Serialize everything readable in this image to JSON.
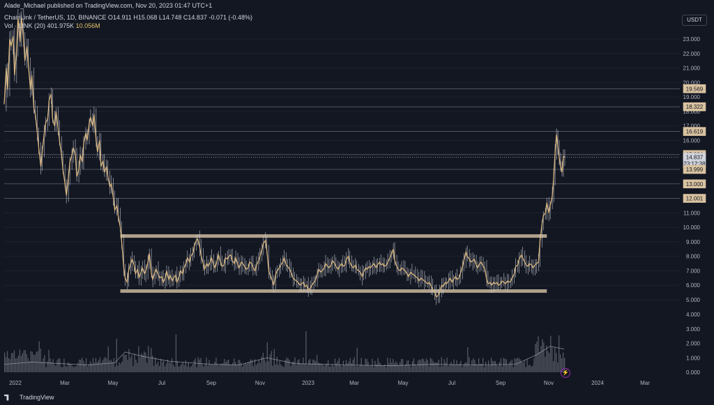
{
  "header": {
    "published": "Alade_Michael published on TradingView.com, Nov 20, 2023 01:47 UTC+1",
    "symbol": "ChainLink / TetherUS, 1D, BINANCE",
    "ohlc": {
      "o_label": "O",
      "o": "14.911",
      "h_label": "H",
      "h": "15.068",
      "l_label": "L",
      "l": "14.748",
      "c_label": "C",
      "c": "14.837",
      "change": "-0.071 (-0.48%)"
    },
    "volume_label": "Vol · LINK (20)",
    "volume": "401.975K",
    "volume_ma": "10.056M"
  },
  "currency": "USDT",
  "price_axis": {
    "ticks": [
      "23.000",
      "22.000",
      "21.000",
      "20.000",
      "19.000",
      "18.000",
      "17.000",
      "16.000",
      "15.000",
      "14.000",
      "13.000",
      "12.000",
      "11.000",
      "10.000",
      "9.000",
      "8.000",
      "7.000",
      "6.000",
      "5.000"
    ],
    "volume_ticks": [
      "4.000",
      "3.000",
      "2.000",
      "1.000",
      "0.000"
    ]
  },
  "price_labels": [
    {
      "text": "19.569",
      "value": 19.569,
      "kind": "level"
    },
    {
      "text": "18.322",
      "value": 18.322,
      "kind": "level"
    },
    {
      "text": "16.619",
      "value": 16.619,
      "kind": "level"
    },
    {
      "text": "15.024",
      "value": 15.024,
      "kind": "level"
    },
    {
      "text": "14.837",
      "value": 14.837,
      "kind": "current"
    },
    {
      "text": "23:12:38",
      "value": 14.4,
      "kind": "countdown"
    },
    {
      "text": "13.999",
      "value": 13.999,
      "kind": "level"
    },
    {
      "text": "13.000",
      "value": 13.0,
      "kind": "level"
    },
    {
      "text": "12.001",
      "value": 12.001,
      "kind": "level"
    }
  ],
  "time_axis": [
    "2022",
    "Mar",
    "May",
    "Jul",
    "Sep",
    "Nov",
    "2023",
    "Mar",
    "May",
    "Jul",
    "Sep",
    "Nov",
    "2024",
    "Mar"
  ],
  "chart_data": {
    "type": "line",
    "range_box": {
      "top": 9.4,
      "bottom": 5.6
    },
    "price_ylim": [
      4.6,
      25.0
    ],
    "close_path": [
      [
        0,
        18.5
      ],
      [
        3,
        21
      ],
      [
        5,
        19.5
      ],
      [
        8,
        23
      ],
      [
        10,
        22.5
      ],
      [
        13,
        23.2
      ],
      [
        15,
        20.5
      ],
      [
        18,
        22.3
      ],
      [
        20,
        24.5
      ],
      [
        23,
        22.8
      ],
      [
        25,
        24.5
      ],
      [
        28,
        23
      ],
      [
        30,
        21.5
      ],
      [
        33,
        22.5
      ],
      [
        35,
        21.2
      ],
      [
        38,
        19.5
      ],
      [
        40,
        20.5
      ],
      [
        43,
        18.2
      ],
      [
        45,
        17.8
      ],
      [
        48,
        16.5
      ],
      [
        50,
        15.5
      ],
      [
        53,
        14.2
      ],
      [
        55,
        15.2
      ],
      [
        58,
        16.5
      ],
      [
        60,
        17.2
      ],
      [
        63,
        17.5
      ],
      [
        65,
        18.8
      ],
      [
        68,
        19.2
      ],
      [
        70,
        17.5
      ],
      [
        73,
        17
      ],
      [
        75,
        18
      ],
      [
        78,
        16.8
      ],
      [
        80,
        16
      ],
      [
        83,
        15
      ],
      [
        85,
        14
      ],
      [
        88,
        13
      ],
      [
        90,
        12.2
      ],
      [
        93,
        13.5
      ],
      [
        95,
        14.5
      ],
      [
        98,
        15
      ],
      [
        100,
        15.5
      ],
      [
        103,
        15
      ],
      [
        105,
        13.5
      ],
      [
        108,
        14
      ],
      [
        110,
        15
      ],
      [
        113,
        14.5
      ],
      [
        115,
        15.8
      ],
      [
        118,
        16.5
      ],
      [
        120,
        16
      ],
      [
        123,
        17.2
      ],
      [
        125,
        17.6
      ],
      [
        128,
        17
      ],
      [
        130,
        17.8
      ],
      [
        133,
        16
      ],
      [
        135,
        15.2
      ],
      [
        138,
        16
      ],
      [
        140,
        14.2
      ],
      [
        143,
        14.6
      ],
      [
        145,
        13.8
      ],
      [
        148,
        14.2
      ],
      [
        150,
        13.5
      ],
      [
        153,
        12.8
      ],
      [
        155,
        13
      ],
      [
        158,
        12
      ],
      [
        160,
        11.2
      ],
      [
        163,
        11.5
      ],
      [
        165,
        10.8
      ],
      [
        168,
        10
      ],
      [
        170,
        9
      ],
      [
        173,
        7.2
      ],
      [
        175,
        6.5
      ],
      [
        178,
        6.2
      ],
      [
        180,
        7
      ],
      [
        183,
        7.5
      ],
      [
        185,
        7.8
      ],
      [
        188,
        7.4
      ],
      [
        190,
        6.8
      ],
      [
        193,
        7.1
      ],
      [
        195,
        6.5
      ],
      [
        198,
        6.9
      ],
      [
        200,
        7.2
      ],
      [
        203,
        6.8
      ],
      [
        205,
        7
      ],
      [
        208,
        7.6
      ],
      [
        210,
        8.2
      ],
      [
        213,
        6.8
      ],
      [
        215,
        6.4
      ],
      [
        218,
        6.9
      ],
      [
        220,
        7.1
      ],
      [
        223,
        6.7
      ],
      [
        225,
        6.5
      ],
      [
        228,
        6.6
      ],
      [
        230,
        6.2
      ],
      [
        233,
        6.5
      ],
      [
        235,
        7
      ],
      [
        238,
        6.4
      ],
      [
        240,
        6.7
      ],
      [
        243,
        6.3
      ],
      [
        245,
        6.5
      ],
      [
        248,
        6.7
      ],
      [
        250,
        6.2
      ],
      [
        253,
        6.6
      ],
      [
        255,
        7
      ],
      [
        258,
        6.8
      ],
      [
        260,
        7.2
      ],
      [
        263,
        7.5
      ],
      [
        265,
        7.9
      ],
      [
        268,
        7.6
      ],
      [
        270,
        8
      ],
      [
        273,
        8.2
      ],
      [
        275,
        8.7
      ],
      [
        278,
        9.1
      ],
      [
        280,
        9.2
      ],
      [
        283,
        8.6
      ],
      [
        285,
        8
      ],
      [
        288,
        7.5
      ],
      [
        290,
        7.1
      ],
      [
        293,
        7.5
      ],
      [
        295,
        7.3
      ],
      [
        298,
        7.6
      ],
      [
        300,
        7.9
      ],
      [
        303,
        7.4
      ],
      [
        305,
        7.2
      ],
      [
        308,
        7.7
      ],
      [
        310,
        8.1
      ],
      [
        313,
        7.6
      ],
      [
        315,
        7.3
      ],
      [
        318,
        7.4
      ],
      [
        320,
        7.9
      ],
      [
        323,
        7.8
      ],
      [
        325,
        8
      ],
      [
        328,
        8.1
      ],
      [
        330,
        7.7
      ],
      [
        333,
        7.5
      ],
      [
        335,
        7.9
      ],
      [
        338,
        7.4
      ],
      [
        340,
        7.2
      ],
      [
        343,
        7.6
      ],
      [
        345,
        7.5
      ],
      [
        348,
        7.3
      ],
      [
        350,
        7.1
      ],
      [
        353,
        7.2
      ],
      [
        355,
        7.6
      ],
      [
        358,
        7.5
      ],
      [
        360,
        7.2
      ],
      [
        363,
        7
      ],
      [
        365,
        7.4
      ],
      [
        368,
        7.7
      ],
      [
        370,
        8
      ],
      [
        373,
        8.5
      ],
      [
        375,
        8.9
      ],
      [
        378,
        9.1
      ],
      [
        380,
        8.4
      ],
      [
        383,
        6.9
      ],
      [
        385,
        6.7
      ],
      [
        388,
        6.3
      ],
      [
        390,
        6
      ],
      [
        393,
        6.8
      ],
      [
        395,
        7
      ],
      [
        398,
        7.2
      ],
      [
        400,
        7.4
      ],
      [
        403,
        7.6
      ],
      [
        405,
        7.9
      ],
      [
        408,
        7.4
      ],
      [
        410,
        7.3
      ],
      [
        413,
        7.1
      ],
      [
        415,
        6.9
      ],
      [
        418,
        6.5
      ],
      [
        420,
        6.4
      ],
      [
        423,
        6.3
      ],
      [
        425,
        6.2
      ],
      [
        428,
        6
      ],
      [
        430,
        6.1
      ],
      [
        433,
        6.2
      ],
      [
        435,
        5.9
      ],
      [
        438,
        6
      ],
      [
        440,
        5.7
      ],
      [
        443,
        5.8
      ],
      [
        445,
        6
      ],
      [
        448,
        6.2
      ],
      [
        450,
        6.3
      ],
      [
        453,
        6.8
      ],
      [
        455,
        7.1
      ],
      [
        458,
        6.9
      ],
      [
        460,
        7
      ],
      [
        463,
        7.2
      ],
      [
        465,
        7.5
      ],
      [
        468,
        7.3
      ],
      [
        470,
        7.2
      ],
      [
        473,
        7.4
      ],
      [
        475,
        7.7
      ],
      [
        478,
        7.5
      ],
      [
        480,
        7.3
      ],
      [
        483,
        7.1
      ],
      [
        485,
        7.3
      ],
      [
        488,
        7.5
      ],
      [
        490,
        7.3
      ],
      [
        493,
        7.4
      ],
      [
        495,
        7.8
      ],
      [
        498,
        8
      ],
      [
        500,
        7.6
      ],
      [
        503,
        7.3
      ],
      [
        505,
        7.2
      ],
      [
        508,
        7.4
      ],
      [
        510,
        7.1
      ],
      [
        513,
        7
      ],
      [
        515,
        6.9
      ],
      [
        518,
        6.6
      ],
      [
        520,
        6.9
      ],
      [
        523,
        7.2
      ],
      [
        525,
        7.1
      ],
      [
        528,
        7.3
      ],
      [
        530,
        7.2
      ],
      [
        533,
        7.4
      ],
      [
        535,
        7.5
      ],
      [
        538,
        7.2
      ],
      [
        540,
        7.4
      ],
      [
        543,
        7.6
      ],
      [
        545,
        7.4
      ],
      [
        548,
        7.5
      ],
      [
        550,
        7.3
      ],
      [
        553,
        7.4
      ],
      [
        555,
        7.6
      ],
      [
        558,
        7.9
      ],
      [
        560,
        8.1
      ],
      [
        563,
        8.5
      ],
      [
        565,
        7.7
      ],
      [
        568,
        7.3
      ],
      [
        570,
        7.1
      ],
      [
        573,
        7
      ],
      [
        575,
        7.2
      ],
      [
        578,
        7.1
      ],
      [
        580,
        7
      ],
      [
        583,
        6.8
      ],
      [
        585,
        6.6
      ],
      [
        588,
        6.9
      ],
      [
        590,
        6.8
      ],
      [
        593,
        6.7
      ],
      [
        595,
        6.6
      ],
      [
        598,
        6.5
      ],
      [
        600,
        6.3
      ],
      [
        603,
        6.5
      ],
      [
        605,
        6.4
      ],
      [
        608,
        6.3
      ],
      [
        610,
        6.2
      ],
      [
        613,
        6.1
      ],
      [
        615,
        6.2
      ],
      [
        618,
        5.9
      ],
      [
        620,
        5.7
      ],
      [
        623,
        5.5
      ],
      [
        625,
        5.2
      ],
      [
        628,
        5.3
      ],
      [
        630,
        5.6
      ],
      [
        633,
        6
      ],
      [
        635,
        5.9
      ],
      [
        638,
        6.2
      ],
      [
        640,
        6.1
      ],
      [
        643,
        6.3
      ],
      [
        645,
        6.5
      ],
      [
        648,
        6.2
      ],
      [
        650,
        6.4
      ],
      [
        653,
        6.6
      ],
      [
        655,
        6.4
      ],
      [
        658,
        6.5
      ],
      [
        660,
        6.8
      ],
      [
        663,
        7.3
      ],
      [
        665,
        7.7
      ],
      [
        668,
        8.3
      ],
      [
        670,
        8
      ],
      [
        673,
        7.8
      ],
      [
        675,
        7.6
      ],
      [
        678,
        7.7
      ],
      [
        680,
        7.8
      ],
      [
        683,
        7.4
      ],
      [
        685,
        7.2
      ],
      [
        688,
        7.5
      ],
      [
        690,
        7.6
      ],
      [
        693,
        7.3
      ],
      [
        695,
        7.2
      ],
      [
        698,
        6.4
      ],
      [
        700,
        6.1
      ],
      [
        703,
        6.2
      ],
      [
        705,
        6
      ],
      [
        708,
        6.2
      ],
      [
        710,
        6.1
      ],
      [
        713,
        6.2
      ],
      [
        715,
        6
      ],
      [
        718,
        6.1
      ],
      [
        720,
        6.3
      ],
      [
        723,
        6.2
      ],
      [
        725,
        6.1
      ],
      [
        728,
        6.3
      ],
      [
        730,
        6.2
      ],
      [
        733,
        6.3
      ],
      [
        735,
        6.5
      ],
      [
        738,
        6.8
      ],
      [
        740,
        7.3
      ],
      [
        743,
        7.4
      ],
      [
        745,
        7.8
      ],
      [
        748,
        8.1
      ],
      [
        750,
        7.9
      ],
      [
        753,
        7.6
      ],
      [
        755,
        7.4
      ],
      [
        758,
        7.3
      ],
      [
        760,
        7.5
      ],
      [
        763,
        7.4
      ],
      [
        765,
        7.2
      ],
      [
        768,
        7.4
      ],
      [
        770,
        7.5
      ],
      [
        773,
        7.6
      ],
      [
        775,
        9
      ],
      [
        778,
        10.2
      ],
      [
        780,
        10.8
      ],
      [
        783,
        11
      ],
      [
        785,
        11.7
      ],
      [
        788,
        11
      ],
      [
        790,
        11.5
      ],
      [
        793,
        12.2
      ],
      [
        795,
        13.5
      ],
      [
        797,
        15.2
      ],
      [
        799,
        16.4
      ],
      [
        801,
        15.6
      ],
      [
        803,
        14.8
      ],
      [
        805,
        14.2
      ],
      [
        807,
        13.8
      ],
      [
        809,
        14.9
      ],
      [
        811,
        14.837
      ]
    ],
    "volume_ma": [
      [
        0,
        0.55
      ],
      [
        40,
        0.7
      ],
      [
        80,
        0.6
      ],
      [
        120,
        0.5
      ],
      [
        160,
        0.65
      ],
      [
        175,
        1.4
      ],
      [
        200,
        1.1
      ],
      [
        240,
        0.75
      ],
      [
        300,
        0.55
      ],
      [
        340,
        0.5
      ],
      [
        380,
        1.0
      ],
      [
        420,
        0.6
      ],
      [
        500,
        0.5
      ],
      [
        560,
        0.45
      ],
      [
        620,
        0.55
      ],
      [
        680,
        0.5
      ],
      [
        740,
        0.55
      ],
      [
        770,
        1.2
      ],
      [
        790,
        1.8
      ],
      [
        810,
        1.6
      ]
    ],
    "volume_ylim": [
      0,
      4.5
    ]
  }
}
